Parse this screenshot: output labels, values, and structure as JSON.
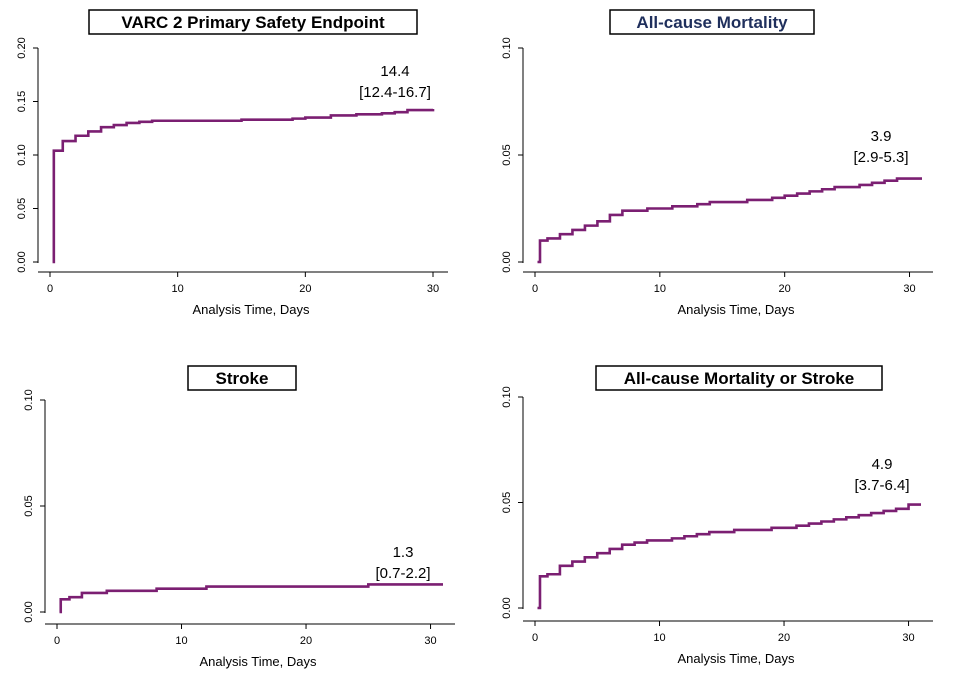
{
  "colors": {
    "curve": "#7b1f72",
    "axis": "#000000",
    "title_dark": "#1f2f5c"
  },
  "x_axis_label": "Analysis Time, Days",
  "chart_data": [
    {
      "type": "line",
      "step": true,
      "title": "VARC 2 Primary Safety Endpoint",
      "xlabel": "Analysis Time, Days",
      "ylabel": "",
      "xlim": [
        0,
        30
      ],
      "ylim": [
        0,
        0.2
      ],
      "xticks": [
        0,
        10,
        20,
        30
      ],
      "yticks": [
        0.0,
        0.05,
        0.1,
        0.15,
        0.2
      ],
      "ytick_labels": [
        "0.00",
        "0.05",
        "0.10",
        "0.15",
        "0.20"
      ],
      "x": [
        0.2,
        0.3,
        1,
        2,
        3,
        4,
        5,
        6,
        7,
        8,
        10,
        14,
        15,
        18,
        19,
        20,
        22,
        24,
        26,
        27,
        28,
        30
      ],
      "y": [
        0,
        0.104,
        0.113,
        0.118,
        0.122,
        0.126,
        0.128,
        0.13,
        0.131,
        0.132,
        0.132,
        0.132,
        0.133,
        0.133,
        0.134,
        0.135,
        0.137,
        0.138,
        0.139,
        0.14,
        0.142,
        0.143
      ],
      "annotation": {
        "value": "14.4",
        "ci": "[12.4-16.7]"
      }
    },
    {
      "type": "line",
      "step": true,
      "title": "All-cause Mortality",
      "xlabel": "Analysis Time, Days",
      "ylabel": "",
      "xlim": [
        0,
        31
      ],
      "ylim": [
        0,
        0.1
      ],
      "xticks": [
        0,
        10,
        20,
        30
      ],
      "yticks": [
        0.0,
        0.05,
        0.1
      ],
      "ytick_labels": [
        "0.00",
        "0.05",
        "0.10"
      ],
      "x": [
        0.2,
        0.4,
        1,
        2,
        3,
        4,
        5,
        6,
        7,
        8,
        9,
        10,
        11,
        12,
        13,
        14,
        15,
        17,
        18,
        19,
        20,
        21,
        22,
        23,
        24,
        25,
        26,
        27,
        28,
        29,
        30,
        31
      ],
      "y": [
        0,
        0.01,
        0.011,
        0.013,
        0.015,
        0.017,
        0.019,
        0.022,
        0.024,
        0.024,
        0.025,
        0.025,
        0.026,
        0.026,
        0.027,
        0.028,
        0.028,
        0.029,
        0.029,
        0.03,
        0.031,
        0.032,
        0.033,
        0.034,
        0.035,
        0.035,
        0.036,
        0.037,
        0.038,
        0.039,
        0.039,
        0.039
      ],
      "annotation": {
        "value": "3.9",
        "ci": "[2.9-5.3]"
      }
    },
    {
      "type": "line",
      "step": true,
      "title": "Stroke",
      "xlabel": "Analysis Time, Days",
      "ylabel": "",
      "xlim": [
        0,
        31
      ],
      "ylim": [
        0,
        0.1
      ],
      "xticks": [
        0,
        10,
        20,
        30
      ],
      "yticks": [
        0.0,
        0.05,
        0.1
      ],
      "ytick_labels": [
        "0.00",
        "0.05",
        "0.10"
      ],
      "x": [
        0.2,
        0.3,
        1,
        2,
        4,
        6,
        8,
        12,
        15,
        20,
        25,
        30,
        31
      ],
      "y": [
        0,
        0.006,
        0.007,
        0.009,
        0.01,
        0.01,
        0.011,
        0.012,
        0.012,
        0.012,
        0.013,
        0.013,
        0.013
      ],
      "annotation": {
        "value": "1.3",
        "ci": "[0.7-2.2]"
      }
    },
    {
      "type": "line",
      "step": true,
      "title": "All-cause Mortality or Stroke",
      "xlabel": "Analysis Time, Days",
      "ylabel": "",
      "xlim": [
        0,
        31
      ],
      "ylim": [
        0,
        0.1
      ],
      "xticks": [
        0,
        10,
        20,
        30
      ],
      "yticks": [
        0.0,
        0.05,
        0.1
      ],
      "ytick_labels": [
        "0.00",
        "0.05",
        "0.10"
      ],
      "x": [
        0.2,
        0.4,
        1,
        2,
        3,
        4,
        5,
        6,
        7,
        8,
        9,
        10,
        11,
        12,
        13,
        14,
        15,
        16,
        17,
        18,
        19,
        20,
        21,
        22,
        23,
        24,
        25,
        26,
        27,
        28,
        29,
        30,
        31
      ],
      "y": [
        0,
        0.015,
        0.016,
        0.02,
        0.022,
        0.024,
        0.026,
        0.028,
        0.03,
        0.031,
        0.032,
        0.032,
        0.033,
        0.034,
        0.035,
        0.036,
        0.036,
        0.037,
        0.037,
        0.037,
        0.038,
        0.038,
        0.039,
        0.04,
        0.041,
        0.042,
        0.043,
        0.044,
        0.045,
        0.046,
        0.047,
        0.049,
        0.049
      ],
      "annotation": {
        "value": "4.9",
        "ci": "[3.7-6.4]"
      }
    }
  ]
}
